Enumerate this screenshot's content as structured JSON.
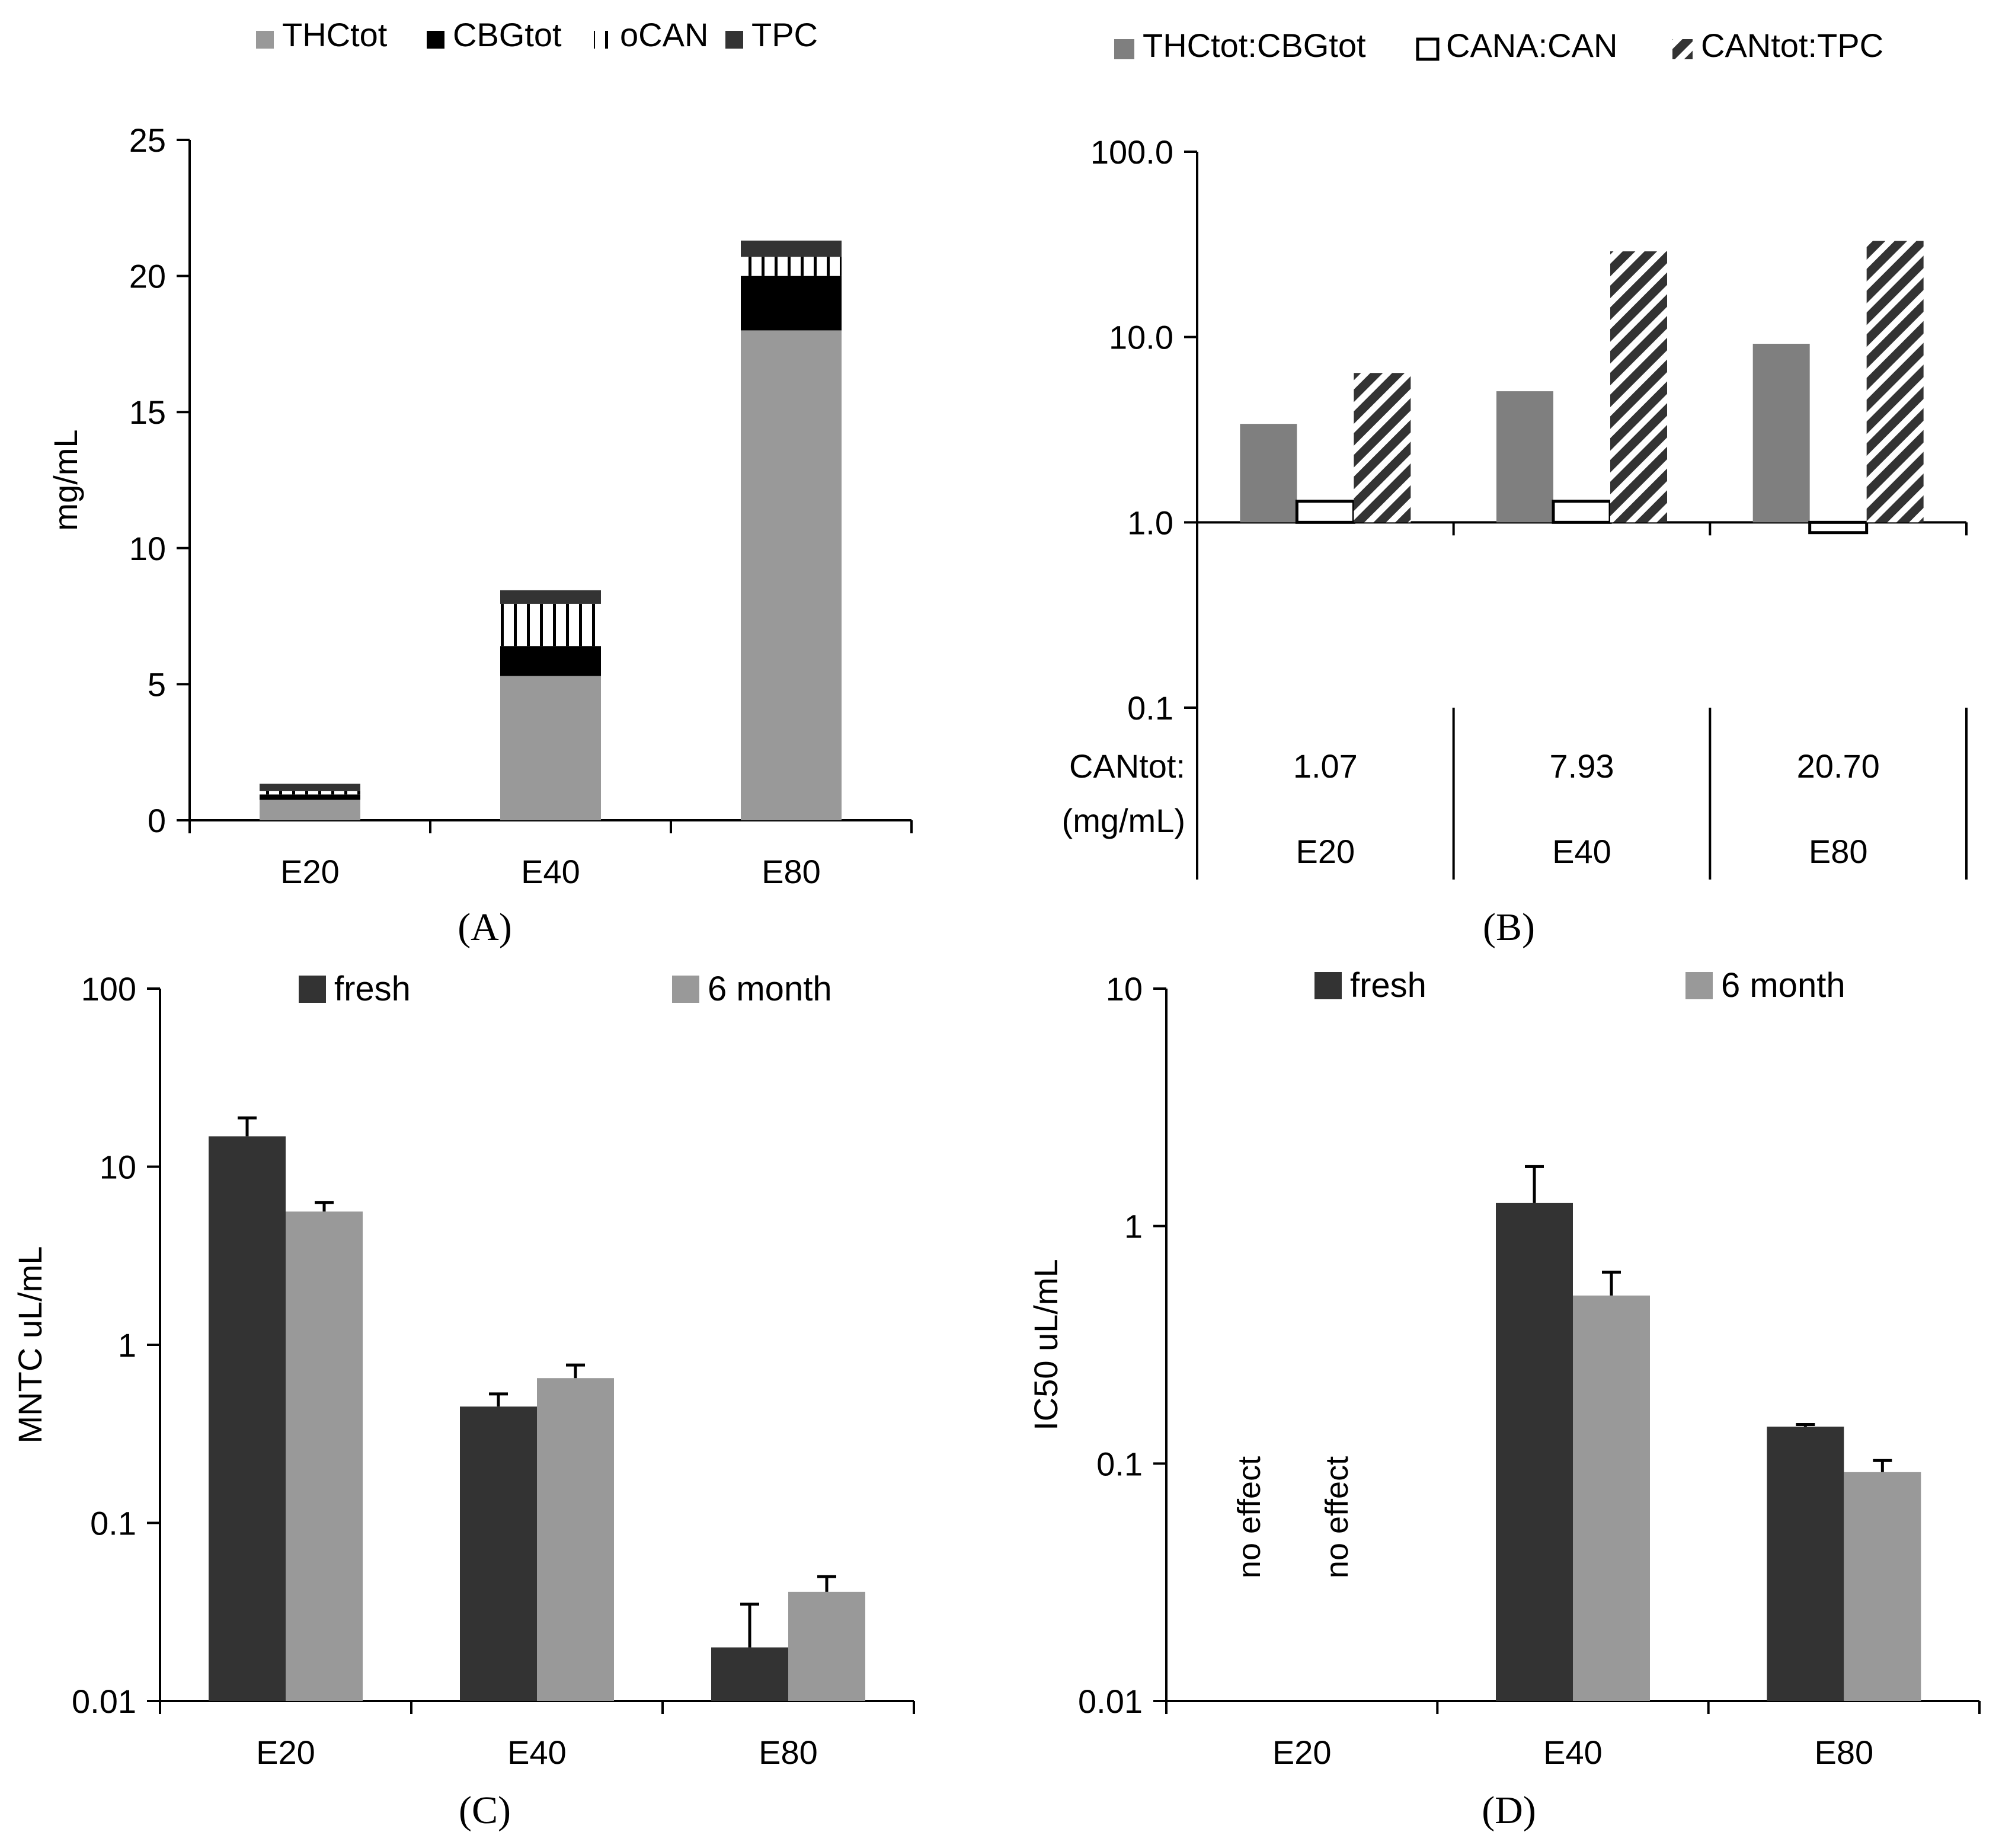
{
  "colors": {
    "gray": "#999999",
    "black": "#000000",
    "dark": "#333333",
    "darkgray": "#7f7f7f",
    "white": "#ffffff",
    "hatch": "#333333",
    "fresh": "#333333",
    "month6": "#999999",
    "errorbar": "#000000"
  },
  "chart_data": [
    {
      "panel": "A",
      "type": "bar",
      "stacked": true,
      "caption": "(A)",
      "categories": [
        "E20",
        "E40",
        "E80"
      ],
      "ylabel": "mg/mL",
      "ylim": [
        0,
        25
      ],
      "yticks": [
        0,
        5,
        10,
        15,
        20,
        25
      ],
      "legend_position": "top",
      "series": [
        {
          "name": "THCtot",
          "values": [
            0.75,
            5.3,
            18.0
          ],
          "color": "#999999",
          "pattern": "solid"
        },
        {
          "name": "CBGtot",
          "values": [
            0.2,
            1.1,
            2.0
          ],
          "color": "#000000",
          "pattern": "solid"
        },
        {
          "name": "oCAN",
          "values": [
            0.12,
            1.55,
            0.7
          ],
          "color": "#ffffff",
          "pattern": "vertical-lines"
        },
        {
          "name": "TPC",
          "values": [
            0.27,
            0.5,
            0.6
          ],
          "color": "#333333",
          "pattern": "solid"
        }
      ]
    },
    {
      "panel": "B",
      "type": "bar",
      "caption": "(B)",
      "categories": [
        "E20",
        "E40",
        "E80"
      ],
      "yscale": "log",
      "ylim": [
        0.1,
        100
      ],
      "yticks": [
        "0.1",
        "1.0",
        "10.0",
        "100.0"
      ],
      "legend_position": "top",
      "series": [
        {
          "name": "THCtot:CBGtot",
          "values": [
            3.4,
            5.1,
            9.2
          ],
          "color": "#7f7f7f",
          "pattern": "solid"
        },
        {
          "name": "CANA:CAN",
          "values": [
            1.3,
            1.3,
            0.88
          ],
          "color": "#ffffff",
          "pattern": "outline"
        },
        {
          "name": "CANtot:TPC",
          "values": [
            6.4,
            29.0,
            33.0
          ],
          "color": "#333333",
          "pattern": "diagonal-hatch"
        }
      ],
      "table": {
        "row_label_1": "CANtot:",
        "row_label_2": "(mg/mL)",
        "values": [
          "1.07",
          "7.93",
          "20.70"
        ]
      }
    },
    {
      "panel": "C",
      "type": "bar",
      "caption": "(C)",
      "categories": [
        "E20",
        "E40",
        "E80"
      ],
      "ylabel": "MNTC uL/mL",
      "yscale": "log",
      "ylim": [
        0.01,
        100
      ],
      "yticks": [
        "0.01",
        "0.1",
        "1",
        "10",
        "100"
      ],
      "legend_position": "top",
      "series": [
        {
          "name": "fresh",
          "values": [
            14.8,
            0.45,
            0.02
          ],
          "errors": [
            4.0,
            0.08,
            0.015
          ],
          "color": "#333333"
        },
        {
          "name": "6 month",
          "values": [
            5.6,
            0.65,
            0.041
          ],
          "errors": [
            0.7,
            0.12,
            0.009
          ],
          "color": "#999999"
        }
      ]
    },
    {
      "panel": "D",
      "type": "bar",
      "caption": "(D)",
      "categories": [
        "E20",
        "E40",
        "E80"
      ],
      "ylabel": "IC50 uL/mL",
      "yscale": "log",
      "ylim": [
        0.01,
        10
      ],
      "yticks": [
        "0.01",
        "0.1",
        "1",
        "10"
      ],
      "legend_position": "top",
      "series": [
        {
          "name": "fresh",
          "values": [
            null,
            1.25,
            0.143
          ],
          "errors": [
            null,
            0.53,
            0.003
          ],
          "color": "#333333"
        },
        {
          "name": "6 month",
          "values": [
            null,
            0.51,
            0.092
          ],
          "errors": [
            null,
            0.13,
            0.011
          ],
          "color": "#999999"
        }
      ],
      "annotations": [
        "no effect",
        "no effect"
      ]
    }
  ]
}
